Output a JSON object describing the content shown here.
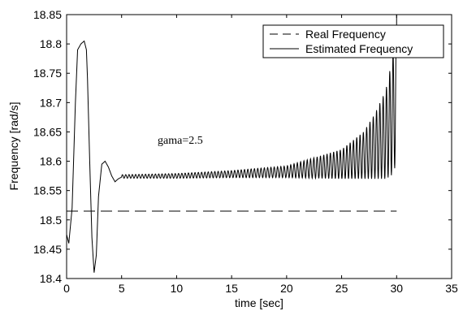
{
  "chart_data": {
    "type": "line",
    "xlabel": "time [sec]",
    "ylabel": "Frequency [rad/s]",
    "xlim": [
      0,
      35
    ],
    "ylim": [
      18.4,
      18.85
    ],
    "xticks": [
      "0",
      "5",
      "10",
      "15",
      "20",
      "25",
      "30",
      "35"
    ],
    "yticks": [
      "18.4",
      "18.45",
      "18.5",
      "18.55",
      "18.6",
      "18.65",
      "18.7",
      "18.75",
      "18.8",
      "18.85"
    ],
    "grid": false,
    "legend_position": "top-right",
    "annotation": "gama=2.5",
    "series": [
      {
        "name": "Real Frequency",
        "style": "dashed",
        "x": [
          0,
          30
        ],
        "y": [
          18.515,
          18.515
        ]
      },
      {
        "name": "Estimated Frequency",
        "style": "solid",
        "transient": {
          "x": [
            0,
            0.2,
            0.5,
            0.8,
            1.0,
            1.3,
            1.6,
            1.8,
            1.9,
            2.1,
            2.3,
            2.5,
            2.7,
            2.9,
            3.2,
            3.5,
            3.8,
            4.1,
            4.4,
            4.7,
            5.0
          ],
          "y": [
            18.475,
            18.46,
            18.52,
            18.7,
            18.79,
            18.8,
            18.805,
            18.79,
            18.74,
            18.6,
            18.47,
            18.41,
            18.44,
            18.54,
            18.595,
            18.6,
            18.59,
            18.575,
            18.565,
            18.57,
            18.573
          ]
        },
        "oscillation": {
          "x_start": 5,
          "x_end": 30,
          "period": 0.3,
          "center_x": [
            5,
            10,
            15,
            20,
            25,
            27,
            28,
            29,
            29.5,
            30
          ],
          "center_y": [
            18.574,
            18.575,
            18.578,
            18.582,
            18.595,
            18.61,
            18.625,
            18.645,
            18.67,
            18.71
          ],
          "amplitude_x": [
            5,
            10,
            15,
            20,
            25,
            27,
            28,
            29,
            29.5,
            30
          ],
          "amplitude_y": [
            0.003,
            0.004,
            0.006,
            0.01,
            0.025,
            0.04,
            0.055,
            0.075,
            0.095,
            0.115
          ]
        }
      }
    ]
  }
}
